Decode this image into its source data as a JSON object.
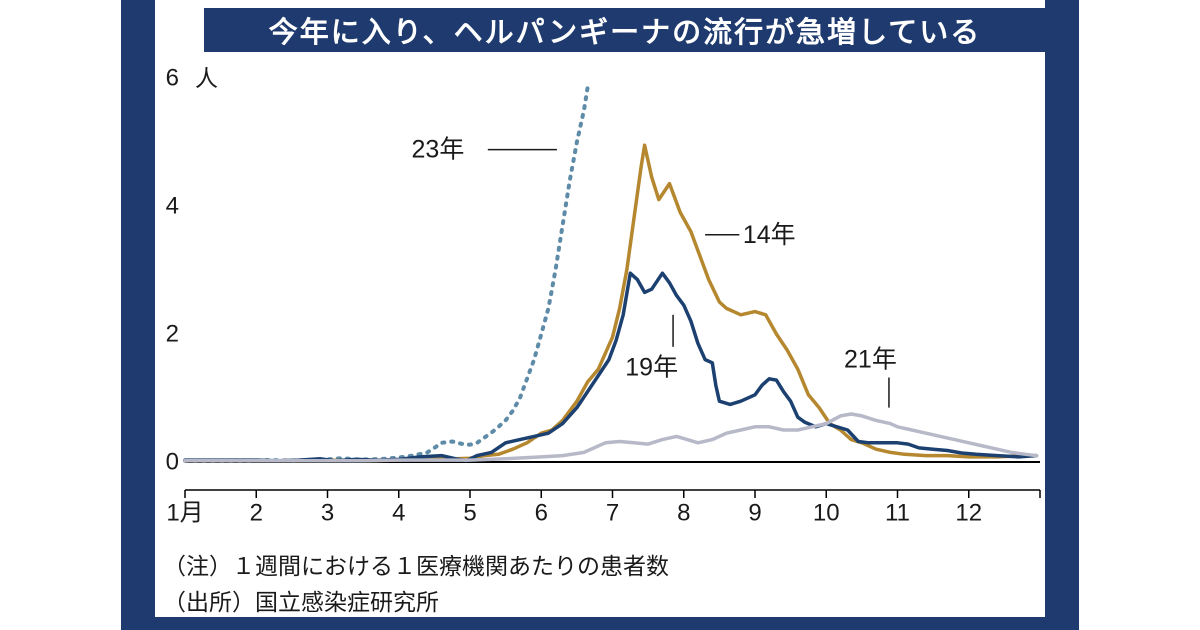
{
  "title": "今年に入り、ヘルパンギーナの流行が急増している",
  "notes": [
    "（注）１週間における１医療機関あたりの患者数",
    "（出所）国立感染症研究所"
  ],
  "colors": {
    "frame_navy": "#1e3a6e",
    "title_bg": "#1e3a6e",
    "title_text": "#ffffff",
    "axis_text": "#1a1a1a"
  },
  "chart_data": {
    "type": "line",
    "unit_label": "人",
    "x_axis": {
      "labels": [
        "1月",
        "2",
        "3",
        "4",
        "5",
        "6",
        "7",
        "8",
        "9",
        "10",
        "11",
        "12"
      ],
      "range": [
        1,
        13
      ]
    },
    "y_axis": {
      "ticks": [
        0,
        2,
        4,
        6
      ],
      "range": [
        0,
        6
      ]
    },
    "grid": false,
    "series": [
      {
        "name": "23年",
        "color": "#5e8ba8",
        "dash": true,
        "points": [
          [
            1,
            0.02
          ],
          [
            1.3,
            0.02
          ],
          [
            1.6,
            0.02
          ],
          [
            1.9,
            0.02
          ],
          [
            2.2,
            0.03
          ],
          [
            2.5,
            0.02
          ],
          [
            2.8,
            0.03
          ],
          [
            3,
            0.04
          ],
          [
            3.2,
            0.06
          ],
          [
            3.4,
            0.04
          ],
          [
            3.6,
            0.04
          ],
          [
            3.8,
            0.05
          ],
          [
            4,
            0.07
          ],
          [
            4.2,
            0.1
          ],
          [
            4.4,
            0.15
          ],
          [
            4.5,
            0.22
          ],
          [
            4.6,
            0.3
          ],
          [
            4.75,
            0.32
          ],
          [
            4.9,
            0.28
          ],
          [
            5,
            0.27
          ],
          [
            5.1,
            0.3
          ],
          [
            5.2,
            0.38
          ],
          [
            5.35,
            0.5
          ],
          [
            5.5,
            0.65
          ],
          [
            5.6,
            0.8
          ],
          [
            5.7,
            1
          ],
          [
            5.8,
            1.3
          ],
          [
            5.9,
            1.6
          ],
          [
            6,
            2
          ],
          [
            6.1,
            2.4
          ],
          [
            6.2,
            3
          ],
          [
            6.3,
            3.7
          ],
          [
            6.4,
            4.4
          ],
          [
            6.5,
            5
          ],
          [
            6.6,
            5.5
          ],
          [
            6.65,
            5.85
          ]
        ]
      },
      {
        "name": "14年",
        "color": "#b5872f",
        "dash": false,
        "points": [
          [
            1,
            0.02
          ],
          [
            1.5,
            0.02
          ],
          [
            2,
            0.02
          ],
          [
            2.5,
            0.02
          ],
          [
            3,
            0.03
          ],
          [
            3.5,
            0.02
          ],
          [
            4,
            0.03
          ],
          [
            4.3,
            0.05
          ],
          [
            4.6,
            0.07
          ],
          [
            4.8,
            0.05
          ],
          [
            5,
            0.06
          ],
          [
            5.2,
            0.1
          ],
          [
            5.4,
            0.12
          ],
          [
            5.6,
            0.2
          ],
          [
            5.8,
            0.3
          ],
          [
            6,
            0.45
          ],
          [
            6.15,
            0.5
          ],
          [
            6.3,
            0.65
          ],
          [
            6.5,
            0.95
          ],
          [
            6.65,
            1.25
          ],
          [
            6.8,
            1.45
          ],
          [
            6.9,
            1.7
          ],
          [
            7,
            1.95
          ],
          [
            7.1,
            2.4
          ],
          [
            7.2,
            3
          ],
          [
            7.3,
            3.8
          ],
          [
            7.4,
            4.6
          ],
          [
            7.45,
            4.95
          ],
          [
            7.55,
            4.45
          ],
          [
            7.65,
            4.1
          ],
          [
            7.8,
            4.35
          ],
          [
            7.95,
            3.9
          ],
          [
            8.1,
            3.6
          ],
          [
            8.2,
            3.3
          ],
          [
            8.35,
            2.85
          ],
          [
            8.5,
            2.5
          ],
          [
            8.6,
            2.4
          ],
          [
            8.8,
            2.3
          ],
          [
            9,
            2.35
          ],
          [
            9.15,
            2.3
          ],
          [
            9.3,
            2
          ],
          [
            9.45,
            1.75
          ],
          [
            9.6,
            1.45
          ],
          [
            9.75,
            1.05
          ],
          [
            9.9,
            0.85
          ],
          [
            10.05,
            0.6
          ],
          [
            10.2,
            0.5
          ],
          [
            10.35,
            0.35
          ],
          [
            10.5,
            0.3
          ],
          [
            10.7,
            0.2
          ],
          [
            10.9,
            0.15
          ],
          [
            11.1,
            0.12
          ],
          [
            11.4,
            0.1
          ],
          [
            11.7,
            0.1
          ],
          [
            12,
            0.08
          ],
          [
            12.4,
            0.08
          ],
          [
            12.8,
            0.1
          ],
          [
            12.95,
            0.1
          ]
        ]
      },
      {
        "name": "19年",
        "color": "#1c4171",
        "dash": false,
        "points": [
          [
            1,
            0.03
          ],
          [
            1.5,
            0.03
          ],
          [
            2,
            0.03
          ],
          [
            2.3,
            0.02
          ],
          [
            2.6,
            0.03
          ],
          [
            2.9,
            0.05
          ],
          [
            3.1,
            0.02
          ],
          [
            3.4,
            0.04
          ],
          [
            3.7,
            0.03
          ],
          [
            4,
            0.04
          ],
          [
            4.3,
            0.08
          ],
          [
            4.6,
            0.1
          ],
          [
            4.8,
            0.05
          ],
          [
            4.95,
            0.02
          ],
          [
            5.1,
            0.1
          ],
          [
            5.3,
            0.15
          ],
          [
            5.5,
            0.3
          ],
          [
            5.7,
            0.35
          ],
          [
            5.9,
            0.4
          ],
          [
            6.1,
            0.45
          ],
          [
            6.3,
            0.6
          ],
          [
            6.5,
            0.85
          ],
          [
            6.65,
            1.1
          ],
          [
            6.8,
            1.35
          ],
          [
            6.95,
            1.6
          ],
          [
            7.05,
            1.9
          ],
          [
            7.15,
            2.3
          ],
          [
            7.25,
            2.95
          ],
          [
            7.35,
            2.85
          ],
          [
            7.45,
            2.65
          ],
          [
            7.55,
            2.7
          ],
          [
            7.7,
            2.95
          ],
          [
            7.8,
            2.8
          ],
          [
            7.9,
            2.6
          ],
          [
            8,
            2.45
          ],
          [
            8.1,
            2.2
          ],
          [
            8.2,
            1.85
          ],
          [
            8.3,
            1.6
          ],
          [
            8.4,
            1.55
          ],
          [
            8.45,
            1.2
          ],
          [
            8.5,
            0.95
          ],
          [
            8.65,
            0.9
          ],
          [
            8.8,
            0.95
          ],
          [
            9,
            1.05
          ],
          [
            9.1,
            1.2
          ],
          [
            9.2,
            1.3
          ],
          [
            9.3,
            1.28
          ],
          [
            9.4,
            1.1
          ],
          [
            9.5,
            0.95
          ],
          [
            9.6,
            0.7
          ],
          [
            9.7,
            0.62
          ],
          [
            9.85,
            0.55
          ],
          [
            10,
            0.6
          ],
          [
            10.15,
            0.55
          ],
          [
            10.3,
            0.5
          ],
          [
            10.45,
            0.32
          ],
          [
            10.6,
            0.3
          ],
          [
            10.8,
            0.3
          ],
          [
            11,
            0.3
          ],
          [
            11.15,
            0.28
          ],
          [
            11.3,
            0.22
          ],
          [
            11.5,
            0.2
          ],
          [
            11.7,
            0.18
          ],
          [
            11.9,
            0.14
          ],
          [
            12.1,
            0.12
          ],
          [
            12.4,
            0.1
          ],
          [
            12.7,
            0.08
          ],
          [
            12.95,
            0.1
          ]
        ]
      },
      {
        "name": "21年",
        "color": "#b7b9c9",
        "dash": false,
        "points": [
          [
            1,
            0.02
          ],
          [
            1.5,
            0.02
          ],
          [
            2,
            0.02
          ],
          [
            2.5,
            0.02
          ],
          [
            3,
            0.02
          ],
          [
            3.5,
            0.02
          ],
          [
            4,
            0.03
          ],
          [
            4.5,
            0.03
          ],
          [
            5,
            0.03
          ],
          [
            5.5,
            0.05
          ],
          [
            6,
            0.08
          ],
          [
            6.3,
            0.1
          ],
          [
            6.6,
            0.15
          ],
          [
            6.9,
            0.3
          ],
          [
            7.1,
            0.32
          ],
          [
            7.3,
            0.3
          ],
          [
            7.5,
            0.28
          ],
          [
            7.7,
            0.35
          ],
          [
            7.9,
            0.4
          ],
          [
            8.05,
            0.35
          ],
          [
            8.2,
            0.3
          ],
          [
            8.4,
            0.35
          ],
          [
            8.6,
            0.45
          ],
          [
            8.8,
            0.5
          ],
          [
            9,
            0.55
          ],
          [
            9.2,
            0.55
          ],
          [
            9.4,
            0.5
          ],
          [
            9.6,
            0.5
          ],
          [
            9.8,
            0.55
          ],
          [
            10,
            0.6
          ],
          [
            10.2,
            0.72
          ],
          [
            10.35,
            0.75
          ],
          [
            10.5,
            0.72
          ],
          [
            10.7,
            0.65
          ],
          [
            10.9,
            0.6
          ],
          [
            11,
            0.55
          ],
          [
            11.2,
            0.5
          ],
          [
            11.4,
            0.45
          ],
          [
            11.6,
            0.4
          ],
          [
            11.8,
            0.35
          ],
          [
            12,
            0.3
          ],
          [
            12.2,
            0.25
          ],
          [
            12.4,
            0.2
          ],
          [
            12.6,
            0.15
          ],
          [
            12.8,
            0.12
          ],
          [
            12.95,
            0.1
          ]
        ]
      }
    ],
    "annotations": [
      {
        "text": "23年",
        "x": 4.55,
        "y": 4.88,
        "leader": [
          [
            5.25,
            4.88
          ],
          [
            6.22,
            4.88
          ]
        ]
      },
      {
        "text": "14年",
        "x": 9.2,
        "y": 3.55,
        "leader": [
          [
            8.3,
            3.55
          ],
          [
            8.78,
            3.55
          ]
        ]
      },
      {
        "text": "19年",
        "x": 7.55,
        "y": 1.48,
        "leader": [
          [
            7.85,
            2.3
          ],
          [
            7.85,
            1.8
          ]
        ]
      },
      {
        "text": "21年",
        "x": 10.62,
        "y": 1.6,
        "leader": [
          [
            10.88,
            1.32
          ],
          [
            10.88,
            0.85
          ]
        ]
      }
    ]
  }
}
